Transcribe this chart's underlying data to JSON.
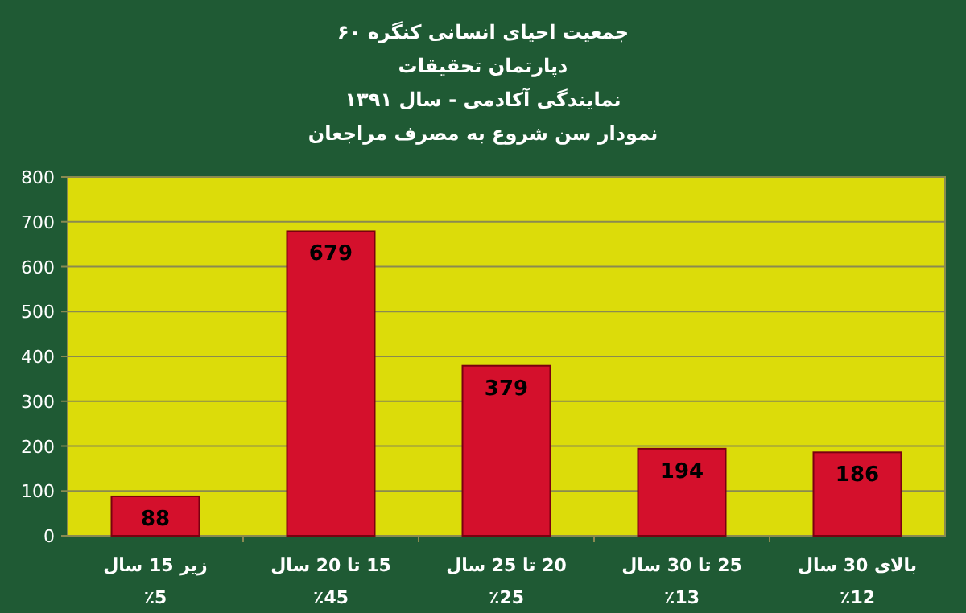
{
  "chart_data": {
    "type": "bar",
    "title": "جمعیت احیای انسانی کنگره ۶۰",
    "subtitle": "دپارتمان تحقیقات\nنمایندگی آکادمی - سال ۱۳۹۱\nنمودار سن شروع به مصرف مراجعان",
    "categories": [
      "زیر 15 سال\n٪5",
      "15 تا 20 سال\n٪45",
      "20 تا 25 سال\n٪25",
      "25 تا 30 سال\n٪13",
      "بالای 30 سال\n٪12"
    ],
    "values": [
      88,
      679,
      379,
      194,
      186
    ],
    "color": "#d4102c",
    "ylim": [
      0,
      800
    ],
    "yticks": [
      0,
      100,
      200,
      300,
      400,
      500,
      600,
      700,
      800
    ],
    "grid": "y",
    "data_labels": true
  }
}
